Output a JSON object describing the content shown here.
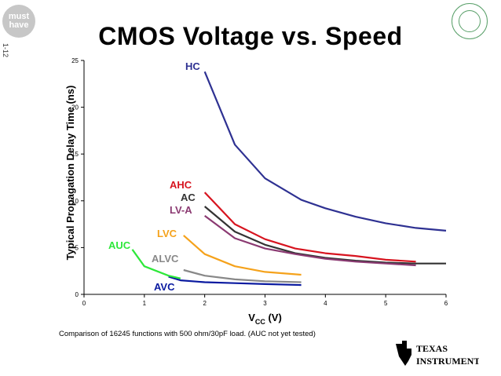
{
  "badge": {
    "line1": "must",
    "line2": "have"
  },
  "page_number": "1-12",
  "footnote": "Comparison of 16245 functions with 500 ohm/30pF load.  (AUC not yet tested)",
  "logo": {
    "line1": "TEXAS",
    "line2": "INSTRUMENTS"
  },
  "chart_data": {
    "type": "line",
    "title": "CMOS Voltage vs. Speed",
    "xlabel": "V",
    "xlabel_sub": "CC",
    "xlabel_unit": " (V)",
    "ylabel": "Typical Propagation Delay Time (ns)",
    "xlim": [
      0,
      6
    ],
    "ylim": [
      0,
      25
    ],
    "xticks": [
      "0",
      "1",
      "2",
      "3",
      "4",
      "5",
      "6"
    ],
    "yticks": [
      "0",
      "5",
      "10",
      "15",
      "20",
      "25"
    ],
    "grid": false,
    "series": [
      {
        "name": "HC",
        "color": "#2e3192",
        "x": [
          2.0,
          2.5,
          3.0,
          3.6,
          4.0,
          4.5,
          5.0,
          5.5,
          6.0
        ],
        "y": [
          23.8,
          16.0,
          12.4,
          10.1,
          9.2,
          8.3,
          7.6,
          7.1,
          6.8
        ]
      },
      {
        "name": "AHC",
        "color": "#d7141f",
        "x": [
          2.0,
          2.5,
          3.0,
          3.5,
          4.0,
          4.5,
          5.0,
          5.5
        ],
        "y": [
          10.9,
          7.5,
          5.9,
          4.9,
          4.4,
          4.1,
          3.7,
          3.5
        ]
      },
      {
        "name": "AC",
        "color": "#333333",
        "x": [
          2.0,
          2.5,
          3.0,
          3.5,
          4.0,
          4.5,
          5.0,
          5.5,
          6.0
        ],
        "y": [
          9.4,
          6.7,
          5.3,
          4.4,
          3.9,
          3.6,
          3.4,
          3.3,
          3.3
        ]
      },
      {
        "name": "LV-A",
        "color": "#8b3a72",
        "x": [
          2.0,
          2.5,
          3.0,
          3.5,
          4.0,
          4.5,
          5.0,
          5.5
        ],
        "y": [
          8.4,
          6.0,
          4.9,
          4.3,
          3.8,
          3.5,
          3.3,
          3.1
        ]
      },
      {
        "name": "LVC",
        "color": "#f5a21b",
        "x": [
          1.65,
          2.0,
          2.5,
          3.0,
          3.6
        ],
        "y": [
          6.3,
          4.3,
          3.0,
          2.4,
          2.1
        ]
      },
      {
        "name": "ALVC",
        "color": "#888888",
        "x": [
          1.65,
          2.0,
          2.5,
          3.0,
          3.6
        ],
        "y": [
          2.6,
          2.0,
          1.6,
          1.4,
          1.3
        ]
      },
      {
        "name": "AVC",
        "color": "#0a1aa0",
        "x": [
          1.4,
          1.6,
          2.0,
          2.5,
          3.0,
          3.6
        ],
        "y": [
          1.9,
          1.5,
          1.3,
          1.2,
          1.1,
          1.0
        ]
      },
      {
        "name": "AUC",
        "color": "#2ee83a",
        "x": [
          0.8,
          1.0,
          1.2,
          1.4,
          1.6
        ],
        "y": [
          4.8,
          3.0,
          2.5,
          2.0,
          1.7
        ]
      }
    ]
  }
}
